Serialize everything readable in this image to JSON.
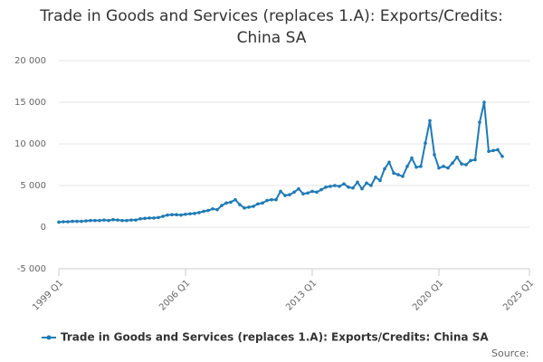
{
  "chart_data": {
    "type": "line",
    "title": "Trade in Goods and Services (replaces 1.A): Exports/Credits: China SA",
    "source": "Source:",
    "x": [
      1999,
      1999.25,
      1999.5,
      1999.75,
      2000,
      2000.25,
      2000.5,
      2000.75,
      2001,
      2001.25,
      2001.5,
      2001.75,
      2002,
      2002.25,
      2002.5,
      2002.75,
      2003,
      2003.25,
      2003.5,
      2003.75,
      2004,
      2004.25,
      2004.5,
      2004.75,
      2005,
      2005.25,
      2005.5,
      2005.75,
      2006,
      2006.25,
      2006.5,
      2006.75,
      2007,
      2007.25,
      2007.5,
      2007.75,
      2008,
      2008.25,
      2008.5,
      2008.75,
      2009,
      2009.25,
      2009.5,
      2009.75,
      2010,
      2010.25,
      2010.5,
      2010.75,
      2011,
      2011.25,
      2011.5,
      2011.75,
      2012,
      2012.25,
      2012.5,
      2012.75,
      2013,
      2013.25,
      2013.5,
      2013.75,
      2014,
      2014.25,
      2014.5,
      2014.75,
      2015,
      2015.25,
      2015.5,
      2015.75,
      2016,
      2016.25,
      2016.5,
      2016.75,
      2017,
      2017.25,
      2017.5,
      2017.75,
      2018,
      2018.25,
      2018.5,
      2018.75,
      2019,
      2019.25,
      2019.5,
      2019.75,
      2020,
      2020.25,
      2020.5,
      2020.75,
      2021,
      2021.25,
      2021.5,
      2021.75,
      2022,
      2022.25,
      2022.5,
      2022.75,
      2023,
      2023.25,
      2023.5
    ],
    "series": [
      {
        "name": "Trade in Goods and Services (replaces 1.A): Exports/Credits: China SA",
        "color": "#1f7ab5",
        "values": [
          600,
          650,
          650,
          700,
          700,
          700,
          750,
          800,
          800,
          800,
          850,
          800,
          900,
          850,
          800,
          800,
          850,
          850,
          1000,
          1050,
          1100,
          1100,
          1150,
          1300,
          1450,
          1500,
          1500,
          1450,
          1550,
          1600,
          1650,
          1750,
          1900,
          2000,
          2200,
          2100,
          2600,
          2900,
          3000,
          3300,
          2700,
          2300,
          2400,
          2500,
          2800,
          2900,
          3200,
          3300,
          3300,
          4300,
          3800,
          3900,
          4200,
          4600,
          4000,
          4100,
          4300,
          4200,
          4500,
          4800,
          4900,
          5000,
          4900,
          5200,
          4800,
          4700,
          5400,
          4600,
          5300,
          5000,
          6000,
          5600,
          7000,
          7800,
          6500,
          6300,
          6100,
          7300,
          8300,
          7200,
          7300,
          10100,
          12800,
          8700,
          7100,
          7300,
          7100,
          7700,
          8400,
          7600,
          7500,
          8000,
          8100,
          12600,
          15000,
          9100,
          9200,
          9300,
          8500
        ]
      }
    ],
    "xlim": [
      1999,
      2025
    ],
    "xticks": [
      {
        "value": 1999,
        "label": "1999 Q1"
      },
      {
        "value": 2006,
        "label": "2006 Q1"
      },
      {
        "value": 2013,
        "label": "2013 Q1"
      },
      {
        "value": 2020,
        "label": "2020 Q1"
      },
      {
        "value": 2025,
        "label": "2025 Q1"
      }
    ],
    "ylim": [
      -5000,
      20000
    ],
    "yticks": [
      {
        "value": -5000,
        "label": "-5 000"
      },
      0,
      {
        "value": 5000,
        "label": "5 000"
      },
      {
        "value": 10000,
        "label": "10 000"
      },
      {
        "value": 15000,
        "label": "15 000"
      },
      {
        "value": 20000,
        "label": "20 000"
      }
    ],
    "grid": true
  }
}
